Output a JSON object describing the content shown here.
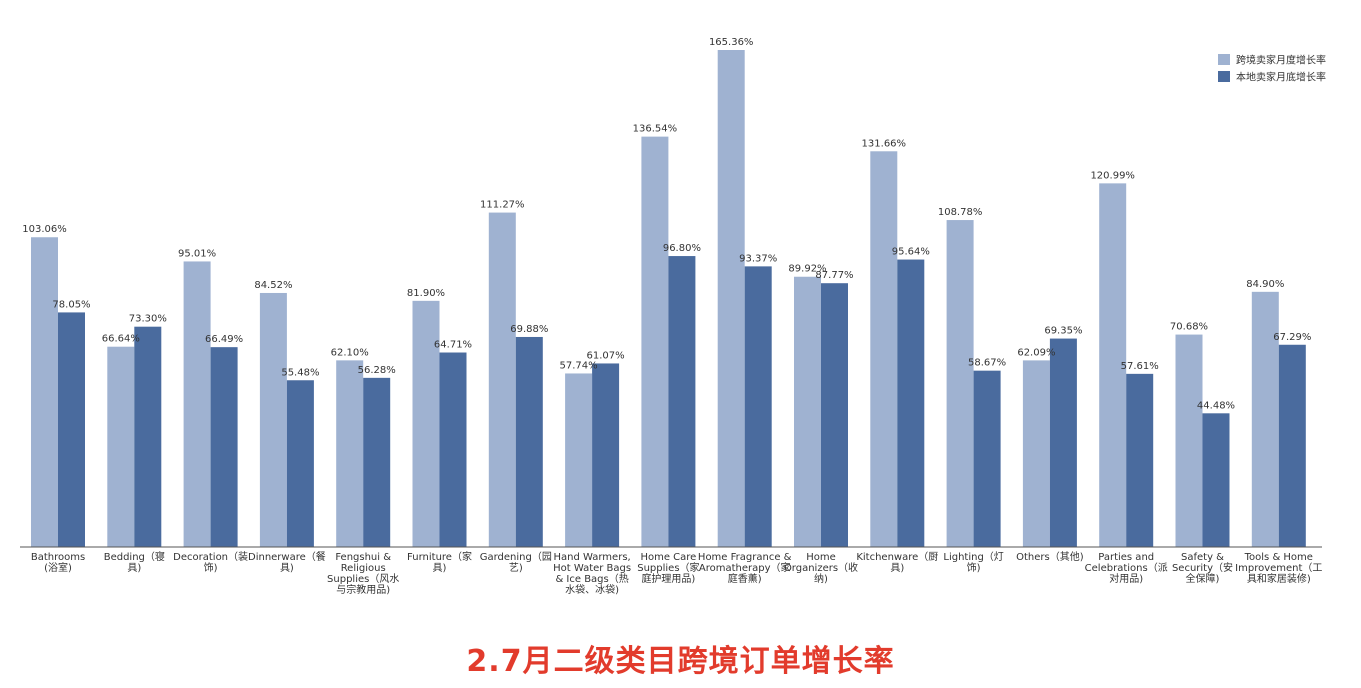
{
  "chart_data": {
    "type": "bar",
    "categories": [
      [
        "Bathrooms",
        "(浴室)"
      ],
      [
        "Bedding（寝",
        "具)"
      ],
      [
        "Decoration（装",
        "饰)"
      ],
      [
        "Dinnerware（餐",
        "具)"
      ],
      [
        "Fengshui &",
        "Religious",
        "Supplies（风水",
        "与宗教用品)"
      ],
      [
        "Furniture（家",
        "具)"
      ],
      [
        "Gardening（园",
        "艺)"
      ],
      [
        "Hand Warmers,",
        "Hot Water Bags",
        "& Ice Bags（热",
        "水袋、冰袋)"
      ],
      [
        "Home Care",
        "Supplies（家",
        "庭护理用品)"
      ],
      [
        "Home Fragrance &",
        "Aromatherapy（家",
        "庭香薰)"
      ],
      [
        "Home",
        "Organizers（收",
        "纳)"
      ],
      [
        "Kitchenware（厨",
        "具)"
      ],
      [
        "Lighting（灯",
        "饰)"
      ],
      [
        "Others（其他)"
      ],
      [
        "Parties and",
        "Celebrations（派",
        "对用品)"
      ],
      [
        "Safety &",
        "Security（安",
        "全保障)"
      ],
      [
        "Tools & Home",
        "Improvement（工",
        "具和家居装修)"
      ]
    ],
    "series": [
      {
        "name": "跨境卖家月度增长率",
        "color": "#9fb2d1",
        "values": [
          103.06,
          66.64,
          95.01,
          84.52,
          62.1,
          81.9,
          111.27,
          57.74,
          136.54,
          165.36,
          89.92,
          131.66,
          108.78,
          62.09,
          120.99,
          70.68,
          84.9
        ],
        "labels": [
          "103.06%",
          "66.64%",
          "95.01%",
          "84.52%",
          "62.10%",
          "81.90%",
          "111.27%",
          "57.74%",
          "136.54%",
          "165.36%",
          "89.92%",
          "131.66%",
          "108.78%",
          "62.09%",
          "120.99%",
          "70.68%",
          "84.90%"
        ]
      },
      {
        "name": "本地卖家月底增长率",
        "color": "#4a6b9e",
        "values": [
          78.05,
          73.3,
          66.49,
          55.48,
          56.28,
          64.71,
          69.88,
          61.07,
          96.8,
          93.37,
          87.77,
          95.64,
          58.67,
          69.35,
          57.61,
          44.48,
          67.29
        ],
        "labels": [
          "78.05%",
          "73.30%",
          "66.49%",
          "55.48%",
          "56.28%",
          "64.71%",
          "69.88%",
          "61.07%",
          "96.80%",
          "93.37%",
          "87.77%",
          "95.64%",
          "58.67%",
          "69.35%",
          "57.61%",
          "44.48%",
          "67.29%"
        ]
      }
    ],
    "ylim": [
      0,
      180
    ],
    "grid": false,
    "legend": "top-right",
    "caption": "2.7月二级类目跨境订单增长率"
  }
}
